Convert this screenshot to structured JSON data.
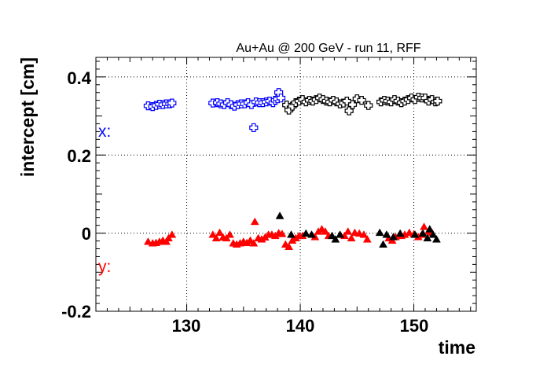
{
  "chart_data": {
    "type": "scatter",
    "title": "Au+Au @ 200 GeV - run 11, RFF",
    "xlabel": "time",
    "ylabel": "intercept [cm]",
    "xlim": [
      122,
      155.5
    ],
    "ylim": [
      -0.2,
      0.45
    ],
    "xticks": [
      "130",
      "140",
      "150"
    ],
    "yticks": [
      "0.4",
      "0.2",
      "0",
      "-0.2"
    ],
    "grid": true,
    "annotations": [
      {
        "text": "x:",
        "color": "#0000ff"
      },
      {
        "text": "y:",
        "color": "#ff0000"
      }
    ],
    "series": [
      {
        "marker": "open-cross",
        "color": "#0000ff",
        "points": [
          [
            126.6,
            0.326
          ],
          [
            127.0,
            0.324
          ],
          [
            127.3,
            0.327
          ],
          [
            127.6,
            0.33
          ],
          [
            127.9,
            0.329
          ],
          [
            128.2,
            0.331
          ],
          [
            128.5,
            0.331
          ],
          [
            128.7,
            0.333
          ],
          [
            132.3,
            0.333
          ],
          [
            132.7,
            0.334
          ],
          [
            133.0,
            0.331
          ],
          [
            133.3,
            0.329
          ],
          [
            133.6,
            0.334
          ],
          [
            133.9,
            0.329
          ],
          [
            134.2,
            0.325
          ],
          [
            134.5,
            0.329
          ],
          [
            134.8,
            0.331
          ],
          [
            135.1,
            0.331
          ],
          [
            135.4,
            0.334
          ],
          [
            135.7,
            0.329
          ],
          [
            135.9,
            0.27
          ],
          [
            136.1,
            0.336
          ],
          [
            136.4,
            0.334
          ],
          [
            136.7,
            0.334
          ],
          [
            137.0,
            0.336
          ],
          [
            137.3,
            0.338
          ],
          [
            137.6,
            0.334
          ],
          [
            137.8,
            0.34
          ],
          [
            138.0,
            0.344
          ],
          [
            138.1,
            0.36
          ],
          [
            138.3,
            0.346
          ]
        ]
      },
      {
        "marker": "open-cross",
        "color": "#000000",
        "points": [
          [
            138.8,
            0.328
          ],
          [
            139.0,
            0.315
          ],
          [
            139.3,
            0.325
          ],
          [
            139.6,
            0.334
          ],
          [
            139.9,
            0.338
          ],
          [
            140.2,
            0.342
          ],
          [
            140.5,
            0.336
          ],
          [
            140.8,
            0.34
          ],
          [
            141.1,
            0.338
          ],
          [
            141.4,
            0.342
          ],
          [
            141.7,
            0.346
          ],
          [
            142.0,
            0.342
          ],
          [
            142.3,
            0.338
          ],
          [
            142.6,
            0.336
          ],
          [
            142.9,
            0.34
          ],
          [
            143.2,
            0.336
          ],
          [
            143.5,
            0.331
          ],
          [
            143.8,
            0.333
          ],
          [
            144.1,
            0.338
          ],
          [
            144.3,
            0.313
          ],
          [
            144.6,
            0.329
          ],
          [
            145.0,
            0.344
          ],
          [
            145.4,
            0.34
          ],
          [
            146.0,
            0.327
          ],
          [
            147.1,
            0.336
          ],
          [
            147.4,
            0.34
          ],
          [
            147.7,
            0.338
          ],
          [
            148.0,
            0.336
          ],
          [
            148.3,
            0.342
          ],
          [
            148.6,
            0.338
          ],
          [
            148.9,
            0.334
          ],
          [
            149.2,
            0.338
          ],
          [
            149.5,
            0.342
          ],
          [
            149.8,
            0.346
          ],
          [
            150.1,
            0.342
          ],
          [
            150.4,
            0.348
          ],
          [
            150.7,
            0.346
          ],
          [
            151.0,
            0.346
          ],
          [
            151.3,
            0.338
          ],
          [
            151.6,
            0.342
          ],
          [
            151.9,
            0.336
          ],
          [
            152.1,
            0.338
          ]
        ]
      },
      {
        "marker": "filled-triangle",
        "color": "#ff0000",
        "points": [
          [
            126.6,
            -0.022
          ],
          [
            127.0,
            -0.026
          ],
          [
            127.3,
            -0.025
          ],
          [
            127.6,
            -0.022
          ],
          [
            127.9,
            -0.019
          ],
          [
            128.2,
            -0.022
          ],
          [
            128.4,
            -0.013
          ],
          [
            128.7,
            -0.004
          ],
          [
            132.3,
            -0.004
          ],
          [
            132.6,
            -0.013
          ],
          [
            132.9,
            0.001
          ],
          [
            133.2,
            -0.011
          ],
          [
            133.5,
            -0.013
          ],
          [
            133.8,
            -0.004
          ],
          [
            134.1,
            -0.026
          ],
          [
            134.4,
            -0.029
          ],
          [
            134.7,
            -0.026
          ],
          [
            135.0,
            -0.022
          ],
          [
            135.3,
            -0.025
          ],
          [
            135.6,
            -0.019
          ],
          [
            135.9,
            -0.026
          ],
          [
            136.0,
            0.029
          ],
          [
            136.3,
            -0.013
          ],
          [
            136.6,
            -0.016
          ],
          [
            136.9,
            -0.011
          ],
          [
            137.2,
            -0.004
          ],
          [
            137.5,
            -0.004
          ],
          [
            137.8,
            -0.007
          ],
          [
            138.1,
            0.0
          ],
          [
            138.4,
            -0.002
          ],
          [
            138.7,
            -0.029
          ],
          [
            139.0,
            -0.035
          ],
          [
            139.3,
            -0.019
          ],
          [
            139.6,
            -0.013
          ],
          [
            139.9,
            -0.007
          ],
          [
            140.2,
            -0.007
          ],
          [
            141.3,
            -0.01
          ],
          [
            141.6,
            0.004
          ],
          [
            141.9,
            0.01
          ],
          [
            142.2,
            0.004
          ],
          [
            142.5,
            -0.007
          ],
          [
            143.9,
            -0.007
          ],
          [
            144.2,
            0.004
          ],
          [
            144.5,
            -0.013
          ],
          [
            144.8,
            0.001
          ],
          [
            145.2,
            -0.001
          ],
          [
            145.6,
            -0.004
          ],
          [
            145.9,
            -0.016
          ],
          [
            147.8,
            -0.013
          ],
          [
            148.1,
            -0.019
          ],
          [
            148.4,
            -0.01
          ],
          [
            148.9,
            -0.007
          ],
          [
            149.2,
            -0.004
          ],
          [
            149.6,
            0.001
          ],
          [
            150.0,
            -0.003
          ],
          [
            150.4,
            -0.01
          ],
          [
            150.7,
            -0.004
          ],
          [
            150.9,
            0.016
          ],
          [
            151.3,
            0.004
          ],
          [
            151.6,
            0.001
          ]
        ]
      },
      {
        "marker": "filled-triangle",
        "color": "#000000",
        "points": [
          [
            138.2,
            0.044
          ],
          [
            139.2,
            -0.004
          ],
          [
            140.5,
            -0.001
          ],
          [
            141.0,
            -0.004
          ],
          [
            142.8,
            -0.007
          ],
          [
            143.1,
            -0.016
          ],
          [
            143.5,
            -0.004
          ],
          [
            147.0,
            0.001
          ],
          [
            147.3,
            -0.029
          ],
          [
            147.6,
            -0.004
          ],
          [
            148.2,
            -0.01
          ],
          [
            148.8,
            -0.001
          ],
          [
            150.1,
            -0.004
          ],
          [
            150.8,
            -0.001
          ],
          [
            151.2,
            -0.013
          ],
          [
            151.4,
            0.01
          ],
          [
            151.7,
            -0.004
          ],
          [
            152.0,
            -0.016
          ]
        ]
      }
    ]
  }
}
